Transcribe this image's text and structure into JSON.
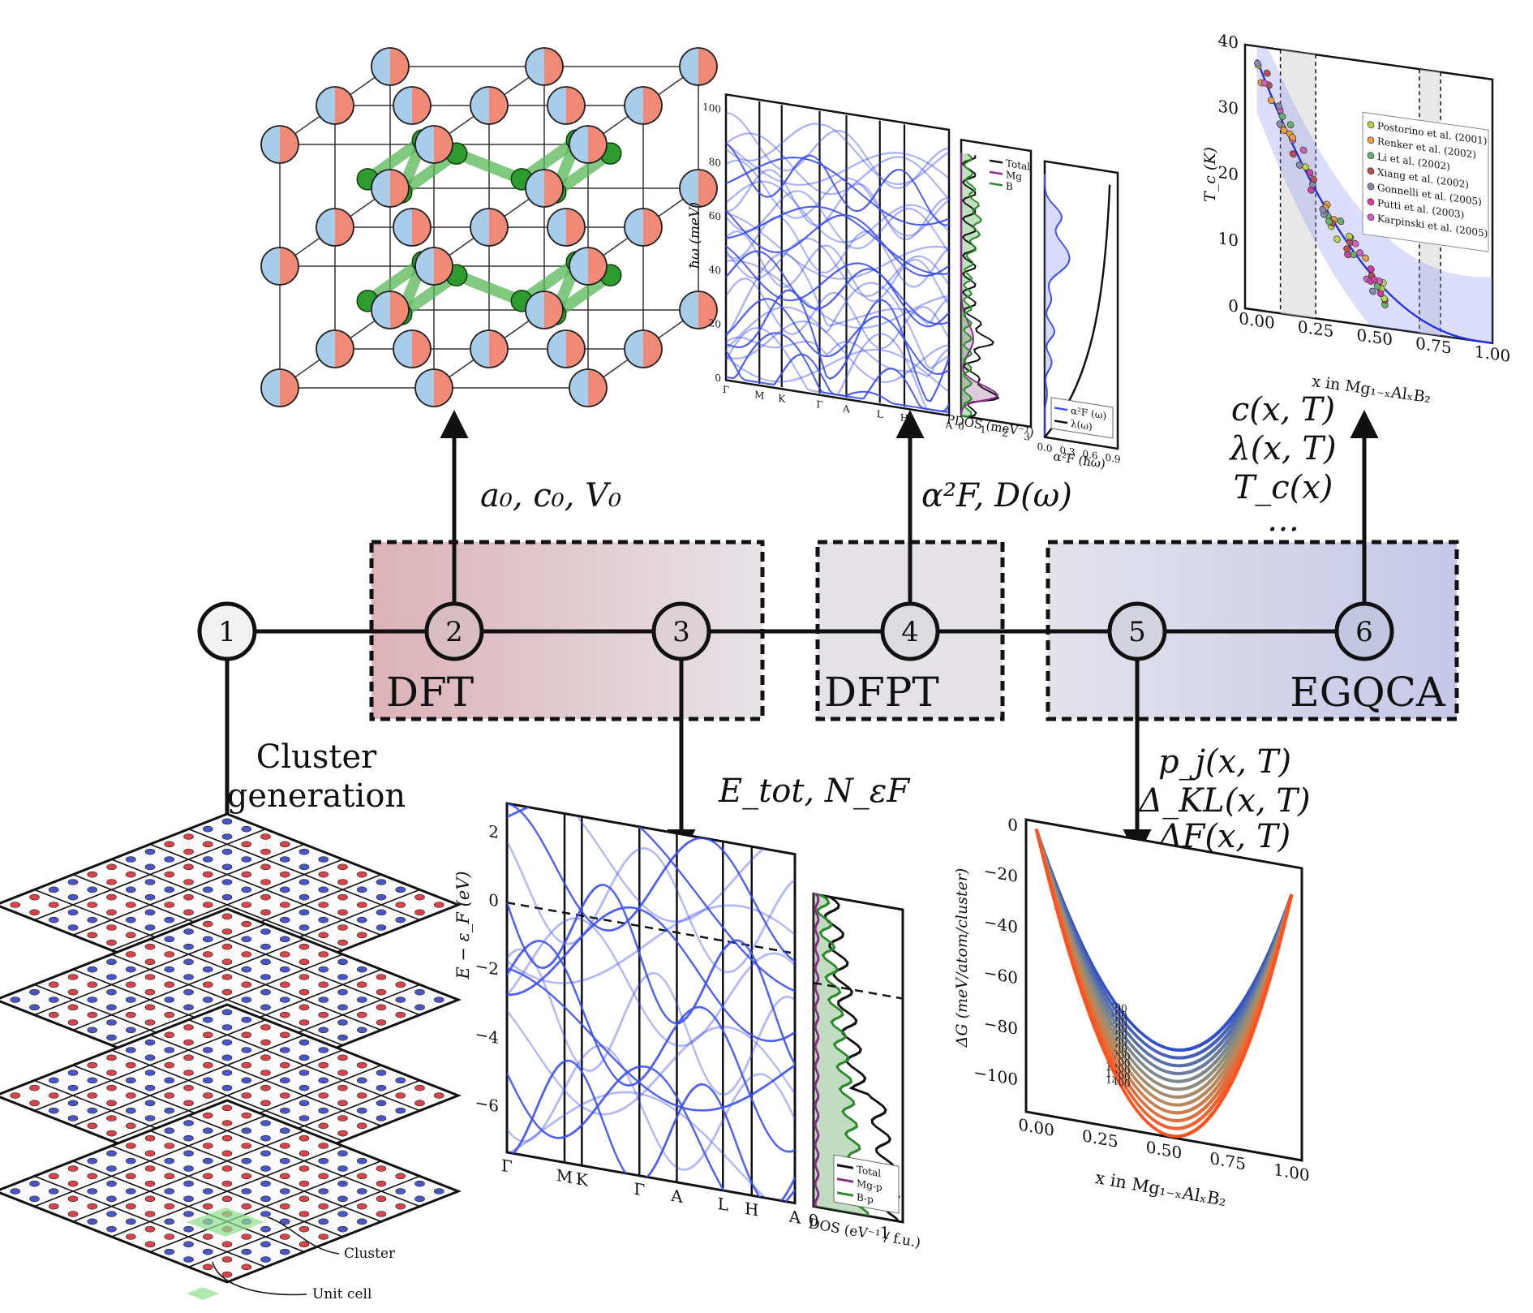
{
  "pipeline": {
    "nodes": [
      "1",
      "2",
      "3",
      "4",
      "5",
      "6"
    ],
    "stages": [
      {
        "label": "DFT",
        "color_start": "#dcb2b8",
        "color_end": "#e5e2e6"
      },
      {
        "label": "DFPT",
        "color": "#e4e2e7"
      },
      {
        "label": "EGQCA",
        "color_start": "#e3e2ea",
        "color_end": "#c7c9e8"
      }
    ],
    "outputs": {
      "n1": [
        "Cluster",
        "generation"
      ],
      "n2": "a₀, c₀, V₀",
      "n3": "E_tot, N_εF",
      "n4": "α²F, D(ω)",
      "n5": [
        "p_j(x, T)",
        "Δ_KL(x, T)",
        "ΔF(x, T)",
        "…"
      ],
      "n6": [
        "c(x, T)",
        "λ(x, T)",
        "T_c(x)",
        "…"
      ]
    }
  },
  "crystal": {
    "atom_colors": [
      "#f08a76",
      "#a8cdea"
    ],
    "boron_color": "#2e9b2e",
    "bond_color": "#58b858"
  },
  "lattice": {
    "labels": [
      "Cluster",
      "Unit cell"
    ],
    "colors": {
      "red": "#d9434a",
      "blue": "#4a55c8",
      "highlight": "#8fe08f"
    }
  },
  "phonon_chart": {
    "ylabel": "ħω (meV)",
    "y_ticks": [
      "0",
      "20",
      "40",
      "60",
      "80",
      "100"
    ],
    "x_ticks": [
      "Γ",
      "M",
      "K",
      "Γ",
      "A",
      "L",
      "H",
      "A"
    ],
    "pdos_xlabel": "PDOS (meV⁻¹)",
    "pdos_ticks": [
      "0",
      "1",
      "2",
      "3"
    ],
    "pdos_legend": [
      "Total",
      "Mg",
      "B"
    ],
    "a2f_xlabel": "α²F (ħω)",
    "a2f_ticks": [
      "0.0",
      "0.3",
      "0.6",
      "0.9"
    ],
    "a2f_legend": [
      "α²F (ω)",
      "λ(ω)"
    ]
  },
  "band_chart": {
    "ylabel": "E − ε_F (eV)",
    "y_ticks": [
      "2",
      "0",
      "−2",
      "−4",
      "−6"
    ],
    "x_ticks": [
      "Γ",
      "M",
      "K",
      "Γ",
      "A",
      "L",
      "H",
      "A"
    ],
    "dos_xlabel": "DOS (eV⁻¹ / f.u.)",
    "dos_ticks": [
      "0",
      "1"
    ],
    "dos_legend": [
      "Total",
      "Mg-p",
      "B-p"
    ]
  },
  "tc_chart": {
    "ylabel": "T_c (K)",
    "xlabel": "x in Mg₁₋ₓAlₓB₂",
    "y_ticks": [
      "0",
      "10",
      "20",
      "30",
      "40"
    ],
    "x_ticks": [
      "0.00",
      "0.25",
      "0.50",
      "0.75",
      "1.00"
    ],
    "legend": [
      "Postorino et al. (2001)",
      "Renker et al. (2002)",
      "Li et al. (2002)",
      "Xiang et al. (2002)",
      "Gonnelli et al. (2005)",
      "Putti et al. (2003)",
      "Karpinski et al. (2005)"
    ]
  },
  "free_energy_chart": {
    "ylabel": "ΔG (meV/atom/cluster)",
    "xlabel": "x in Mg₁₋ₓAlₓB₂",
    "y_ticks": [
      "0",
      "−20",
      "−40",
      "−60",
      "−80",
      "−100"
    ],
    "x_ticks": [
      "0.00",
      "0.25",
      "0.50",
      "0.75",
      "1.00"
    ],
    "temperatures": [
      "300",
      "400",
      "500",
      "600",
      "700",
      "800",
      "900",
      "1000",
      "1100",
      "1200",
      "1300",
      "1400"
    ]
  }
}
